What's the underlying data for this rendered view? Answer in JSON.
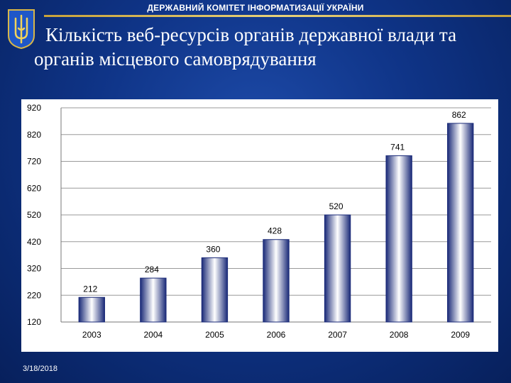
{
  "header": {
    "title": "ДЕРЖАВНИЙ КОМІТЕТ ІНФОРМАТИЗАЦІЇ УКРАЇНИ"
  },
  "slide": {
    "title": "Кількість веб-ресурсів органів державної влади та органів місцевого самоврядування",
    "date": "3/18/2018"
  },
  "colors": {
    "background": "#0f3487",
    "accent_gold": "#d8b648",
    "bar_top": "#1a2a78",
    "bar_mid": "#ffffff",
    "chart_bg": "#ffffff"
  },
  "icons": {
    "emblem": "ukraine-trident-emblem-icon"
  },
  "chart_data": {
    "type": "bar",
    "title": "",
    "xlabel": "",
    "ylabel": "",
    "categories": [
      "2003",
      "2004",
      "2005",
      "2006",
      "2007",
      "2008",
      "2009"
    ],
    "values": [
      212,
      284,
      360,
      428,
      520,
      741,
      862
    ],
    "value_labels": [
      "212",
      "284",
      "360",
      "428",
      "520",
      "741",
      "862"
    ],
    "yticks": [
      120,
      220,
      320,
      420,
      520,
      620,
      720,
      820,
      920
    ],
    "ytick_labels": [
      "120",
      "220",
      "320",
      "420",
      "520",
      "620",
      "720",
      "820",
      "920"
    ],
    "ylim": [
      120,
      920
    ],
    "grid": true,
    "legend": "none"
  }
}
